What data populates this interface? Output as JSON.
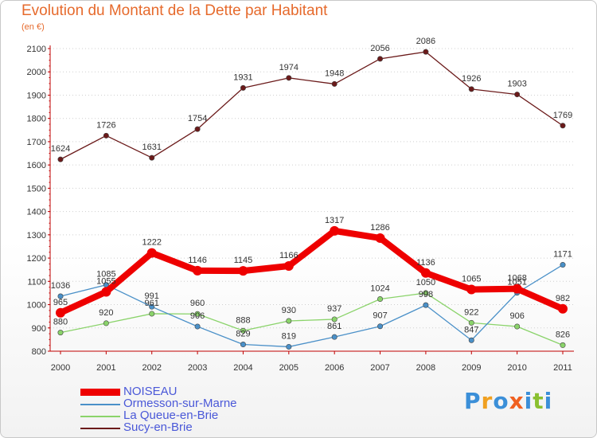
{
  "chart_data": {
    "type": "line",
    "title": "Evolution du Montant de la Dette par Habitant",
    "subtitle": "(en €)",
    "xlabel": "",
    "ylabel": "",
    "categories": [
      "2000",
      "2001",
      "2002",
      "2003",
      "2004",
      "2005",
      "2006",
      "2007",
      "2008",
      "2009",
      "2010",
      "2011"
    ],
    "ylim": [
      800,
      2100
    ],
    "yticks": [
      800,
      900,
      1000,
      1100,
      1200,
      1300,
      1400,
      1500,
      1600,
      1700,
      1800,
      1900,
      2000,
      2100
    ],
    "grid": "y",
    "legend_position": "bottom-left",
    "series": [
      {
        "name": "Sucy-en-Brie",
        "color": "#6b1a1a",
        "values": [
          1624,
          1726,
          1631,
          1754,
          1931,
          1974,
          1948,
          2056,
          2086,
          1926,
          1903,
          1769
        ]
      },
      {
        "name": "La Queue-en-Brie",
        "color": "#8ad36a",
        "values": [
          880,
          920,
          961,
          960,
          888,
          930,
          937,
          1024,
          1050,
          922,
          906,
          826
        ]
      },
      {
        "name": "Ormesson-sur-Marne",
        "color": "#4a90c8",
        "values": [
          1036,
          1085,
          991,
          906,
          829,
          819,
          861,
          907,
          998,
          847,
          1051,
          1171
        ]
      },
      {
        "name": "NOISEAU",
        "color": "#ee0000",
        "values": [
          965,
          1055,
          1222,
          1146,
          1145,
          1166,
          1317,
          1286,
          1136,
          1065,
          1068,
          982
        ]
      }
    ]
  },
  "legend": [
    {
      "name": "NOISEAU",
      "color": "#ee0000",
      "thick": true
    },
    {
      "name": "Ormesson-sur-Marne",
      "color": "#4a90c8",
      "thick": false
    },
    {
      "name": "La Queue-en-Brie",
      "color": "#8ad36a",
      "thick": false
    },
    {
      "name": "Sucy-en-Brie",
      "color": "#6b1a1a",
      "thick": false
    }
  ],
  "logo": {
    "text": "Proxiti",
    "letters": [
      {
        "ch": "P",
        "color": "#3b8fd8"
      },
      {
        "ch": "r",
        "color": "#f0a020"
      },
      {
        "ch": "o",
        "color": "#3b8fd8"
      },
      {
        "ch": "x",
        "color": "#f06020"
      },
      {
        "ch": "i",
        "color": "#3b8fd8"
      },
      {
        "ch": "t",
        "color": "#8ac030"
      },
      {
        "ch": "i",
        "color": "#3b8fd8"
      }
    ]
  }
}
